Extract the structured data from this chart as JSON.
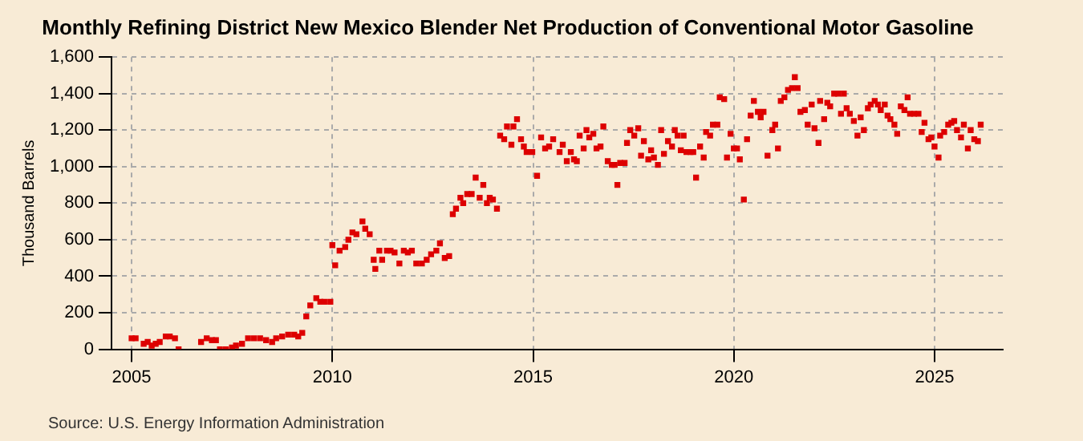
{
  "chart_data": {
    "type": "scatter",
    "title": "Monthly Refining District New Mexico Blender Net Production of Conventional Motor Gasoline",
    "ylabel": "Thousand Barrels",
    "annotations": [
      "Source: U.S. Energy Information Administration"
    ],
    "color": "#dd0000",
    "marker": "square",
    "grid": true,
    "xlim": [
      2004.5,
      2026.7
    ],
    "xticks": [
      2005,
      2010,
      2015,
      2020,
      2025
    ],
    "ylim": [
      0,
      1600
    ],
    "yticks": [
      0,
      200,
      400,
      600,
      800,
      {
        "value": 1000,
        "label": "1,000"
      },
      {
        "value": 1200,
        "label": "1,200"
      },
      {
        "value": 1400,
        "label": "1,400"
      },
      {
        "value": 1600,
        "label": "1,600"
      }
    ],
    "x": [
      2005.0,
      2005.1,
      2005.3,
      2005.4,
      2005.5,
      2005.6,
      2005.7,
      2005.85,
      2005.95,
      2006.08,
      2006.17,
      2006.73,
      2006.87,
      2007.0,
      2007.1,
      2007.2,
      2007.35,
      2007.5,
      2007.6,
      2007.75,
      2007.9,
      2008.05,
      2008.2,
      2008.35,
      2008.5,
      2008.6,
      2008.75,
      2008.9,
      2009.05,
      2009.15,
      2009.25,
      2009.35,
      2009.45,
      2009.6,
      2009.7,
      2009.8,
      2009.95,
      2010.0,
      2010.07,
      2010.18,
      2010.32,
      2010.4,
      2010.5,
      2010.6,
      2010.75,
      2010.82,
      2010.93,
      2011.03,
      2011.07,
      2011.17,
      2011.24,
      2011.36,
      2011.45,
      2011.55,
      2011.67,
      2011.78,
      2011.88,
      2011.98,
      2012.09,
      2012.23,
      2012.35,
      2012.46,
      2012.59,
      2012.68,
      2012.8,
      2012.91,
      2013.0,
      2013.08,
      2013.19,
      2013.26,
      2013.36,
      2013.47,
      2013.57,
      2013.67,
      2013.76,
      2013.85,
      2013.92,
      2014.0,
      2014.1,
      2014.18,
      2014.28,
      2014.35,
      2014.46,
      2014.51,
      2014.6,
      2014.7,
      2014.77,
      2014.84,
      2014.98,
      2015.1,
      2015.2,
      2015.3,
      2015.4,
      2015.5,
      2015.66,
      2015.74,
      2015.84,
      2015.94,
      2016.02,
      2016.09,
      2016.16,
      2016.26,
      2016.33,
      2016.4,
      2016.5,
      2016.58,
      2016.68,
      2016.75,
      2016.86,
      2016.96,
      2017.03,
      2017.1,
      2017.17,
      2017.28,
      2017.34,
      2017.42,
      2017.52,
      2017.62,
      2017.69,
      2017.76,
      2017.87,
      2017.94,
      2018.01,
      2018.11,
      2018.19,
      2018.26,
      2018.36,
      2018.46,
      2018.53,
      2018.6,
      2018.68,
      2018.75,
      2018.82,
      2018.92,
      2018.99,
      2019.06,
      2019.16,
      2019.25,
      2019.31,
      2019.41,
      2019.48,
      2019.59,
      2019.65,
      2019.76,
      2019.83,
      2019.92,
      2020.0,
      2020.08,
      2020.15,
      2020.25,
      2020.33,
      2020.42,
      2020.5,
      2020.6,
      2020.67,
      2020.74,
      2020.84,
      2020.96,
      2021.03,
      2021.1,
      2021.17,
      2021.26,
      2021.35,
      2021.45,
      2021.52,
      2021.59,
      2021.66,
      2021.77,
      2021.84,
      2021.94,
      2022.01,
      2022.11,
      2022.15,
      2022.25,
      2022.33,
      2022.4,
      2022.5,
      2022.6,
      2022.67,
      2022.74,
      2022.81,
      2022.89,
      2022.99,
      2023.08,
      2023.16,
      2023.24,
      2023.34,
      2023.41,
      2023.51,
      2023.59,
      2023.66,
      2023.76,
      2023.83,
      2023.9,
      2024.0,
      2024.07,
      2024.16,
      2024.25,
      2024.33,
      2024.39,
      2024.49,
      2024.6,
      2024.68,
      2024.75,
      2024.85,
      2024.92,
      2025.0,
      2025.1,
      2025.14,
      2025.24,
      2025.34,
      2025.42,
      2025.49,
      2025.56,
      2025.66,
      2025.73,
      2025.83,
      2025.9,
      2025.99,
      2026.08,
      2026.15
    ],
    "values": [
      60,
      60,
      30,
      40,
      20,
      30,
      40,
      70,
      70,
      60,
      0,
      40,
      60,
      50,
      50,
      0,
      0,
      10,
      20,
      30,
      60,
      60,
      60,
      50,
      40,
      60,
      70,
      80,
      80,
      70,
      90,
      180,
      240,
      280,
      260,
      260,
      260,
      570,
      460,
      540,
      560,
      600,
      640,
      630,
      700,
      660,
      630,
      490,
      440,
      540,
      490,
      540,
      540,
      530,
      470,
      540,
      530,
      540,
      470,
      470,
      490,
      520,
      540,
      580,
      500,
      510,
      740,
      770,
      830,
      800,
      850,
      850,
      940,
      830,
      900,
      800,
      830,
      820,
      770,
      1170,
      1150,
      1220,
      1120,
      1220,
      1260,
      1150,
      1110,
      1080,
      1080,
      950,
      1160,
      1100,
      1110,
      1150,
      1080,
      1120,
      1030,
      1080,
      1040,
      1030,
      1170,
      1100,
      1200,
      1160,
      1180,
      1100,
      1110,
      1220,
      1030,
      1010,
      1010,
      900,
      1020,
      1020,
      1130,
      1200,
      1170,
      1210,
      1060,
      1140,
      1040,
      1090,
      1050,
      1010,
      1200,
      1070,
      1140,
      1110,
      1200,
      1170,
      1090,
      1170,
      1080,
      1080,
      1080,
      940,
      1110,
      1050,
      1190,
      1170,
      1230,
      1230,
      1380,
      1370,
      1050,
      1180,
      1100,
      1100,
      1040,
      820,
      1150,
      1280,
      1360,
      1300,
      1270,
      1300,
      1060,
      1200,
      1230,
      1100,
      1360,
      1380,
      1420,
      1430,
      1490,
      1430,
      1300,
      1310,
      1230,
      1340,
      1210,
      1130,
      1360,
      1260,
      1350,
      1330,
      1400,
      1400,
      1290,
      1400,
      1320,
      1290,
      1250,
      1170,
      1270,
      1200,
      1320,
      1340,
      1360,
      1340,
      1310,
      1340,
      1280,
      1260,
      1230,
      1180,
      1330,
      1310,
      1380,
      1290,
      1290,
      1290,
      1190,
      1240,
      1150,
      1160,
      1110,
      1050,
      1170,
      1190,
      1230,
      1240,
      1250,
      1200,
      1160,
      1230,
      1100,
      1200,
      1150,
      1140,
      1230
    ]
  }
}
